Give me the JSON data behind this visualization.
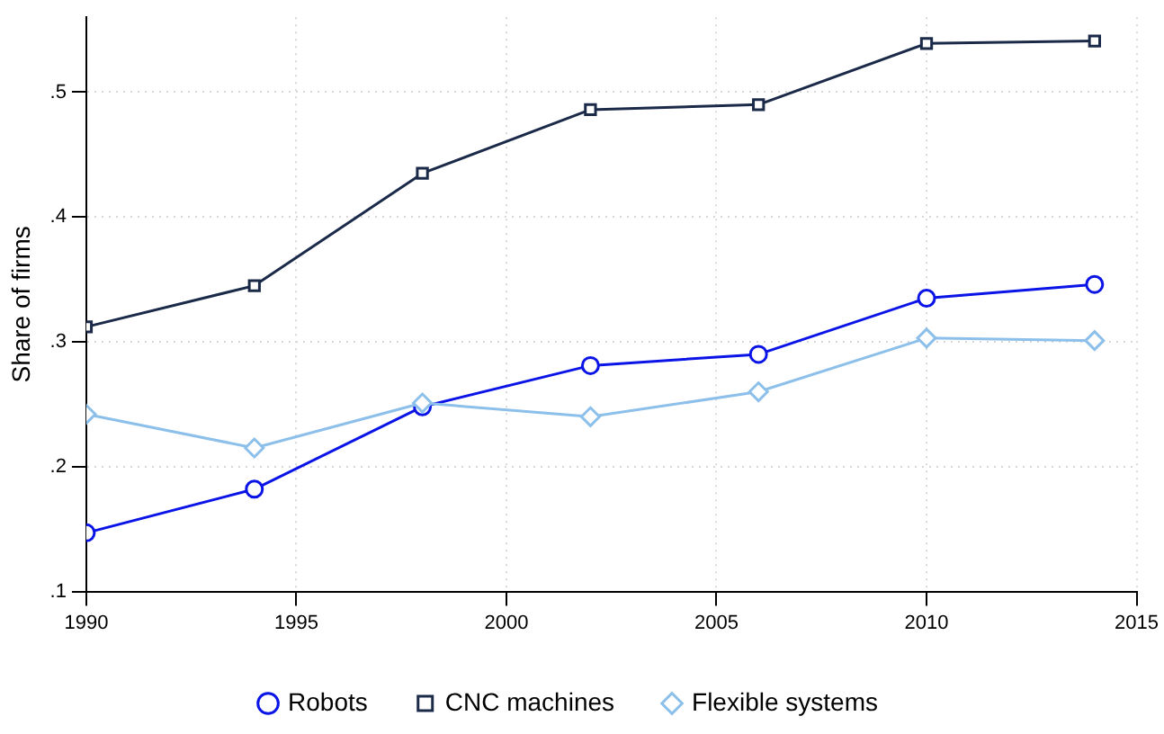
{
  "chart_data": {
    "type": "line",
    "ylabel": "Share of firms",
    "x": [
      1990,
      1994,
      1998,
      2002,
      2006,
      2010,
      2014
    ],
    "series": [
      {
        "name": "Robots",
        "color": "#0a14e6",
        "marker": "circle",
        "values": [
          0.147,
          0.182,
          0.248,
          0.281,
          0.29,
          0.335,
          0.346
        ]
      },
      {
        "name": "CNC machines",
        "color": "#1a2a48",
        "marker": "square",
        "values": [
          0.312,
          0.345,
          0.435,
          0.486,
          0.49,
          0.539,
          0.541
        ]
      },
      {
        "name": "Flexible systems",
        "color": "#8cc0ea",
        "marker": "diamond",
        "values": [
          0.242,
          0.215,
          0.251,
          0.24,
          0.26,
          0.303,
          0.301
        ]
      }
    ],
    "xlim": [
      1990,
      2015
    ],
    "xticks": [
      1990,
      1995,
      2000,
      2005,
      2010,
      2015
    ],
    "ylim": [
      0.1,
      0.56
    ],
    "yticks": [
      {
        "value": 0.1,
        "label": ".1"
      },
      {
        "value": 0.2,
        "label": ".2"
      },
      {
        "value": 0.3,
        "label": ".3"
      },
      {
        "value": 0.4,
        "label": ".4"
      },
      {
        "value": 0.5,
        "label": ".5"
      }
    ],
    "grid": true,
    "legend": "bottom",
    "line_style": "solid"
  }
}
